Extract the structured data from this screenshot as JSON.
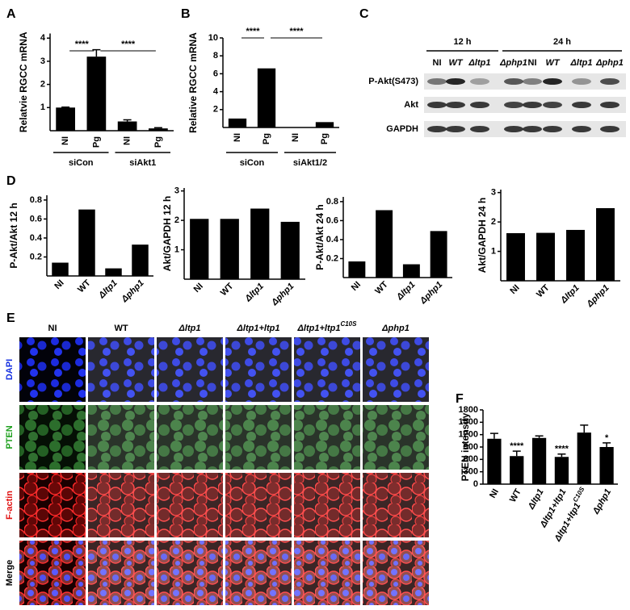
{
  "chart_data": [
    {
      "type": "bar",
      "panel": "A",
      "ylabel": "Relatvie RGCC mRNA",
      "categories": [
        "NI",
        "Pg",
        "NI",
        "Pg"
      ],
      "values": [
        1,
        3.2,
        0.4,
        0.1
      ],
      "errors": [
        0.02,
        0.3,
        0.07,
        0.03
      ],
      "groups": [
        "siCon",
        "siAkt1"
      ],
      "significance": [
        "****",
        "****"
      ],
      "color": "#000000",
      "ylim": [
        0,
        4.2
      ],
      "yticks": [
        1,
        2,
        3,
        4
      ]
    },
    {
      "type": "bar",
      "panel": "B",
      "ylabel": "Relative RGCC mRNA",
      "categories": [
        "NI",
        "Pg",
        "NI",
        "Pg"
      ],
      "values": [
        1,
        6.6,
        0,
        0.6
      ],
      "groups": [
        "siCon",
        "siAkt1/2"
      ],
      "significance": [
        "****",
        "****"
      ],
      "color": "#000000",
      "ylim": [
        0,
        10
      ],
      "yticks": [
        2,
        4,
        6,
        8,
        10
      ]
    },
    {
      "type": "bar",
      "panel": "D",
      "ylabel": "P-Akt/Akt  12 h",
      "categories": [
        "NI",
        "WT",
        "Δltp1",
        "Δphp1"
      ],
      "values": [
        0.14,
        0.7,
        0.08,
        0.33
      ],
      "color": "#000000",
      "ylim": [
        0,
        0.85
      ],
      "yticks": [
        0.2,
        0.4,
        0.6,
        0.8
      ]
    },
    {
      "type": "bar",
      "ylabel": "Akt/GAPDH  12 h",
      "categories": [
        "NI",
        "WT",
        "Δltp1",
        "Δphp1"
      ],
      "values": [
        2.05,
        2.05,
        2.4,
        1.95
      ],
      "color": "#000000",
      "ylim": [
        0,
        3.1
      ],
      "yticks": [
        1,
        2,
        3
      ]
    },
    {
      "type": "bar",
      "ylabel": "P-Akt/Akt  24 h",
      "categories": [
        "NI",
        "WT",
        "Δltp1",
        "Δphp1"
      ],
      "values": [
        0.17,
        0.71,
        0.14,
        0.49
      ],
      "color": "#000000",
      "ylim": [
        0,
        0.85
      ],
      "yticks": [
        0.2,
        0.4,
        0.6,
        0.8
      ]
    },
    {
      "type": "bar",
      "ylabel": "Akt/GAPDH  24 h",
      "categories": [
        "NI",
        "WT",
        "Δltp1",
        "Δphp1"
      ],
      "values": [
        1.62,
        1.63,
        1.73,
        2.47
      ],
      "color": "#000000",
      "ylim": [
        0,
        3.1
      ],
      "yticks": [
        1,
        2,
        3
      ]
    },
    {
      "type": "bar",
      "panel": "F",
      "ylabel": "PTEN intensity",
      "categories": [
        "NI",
        "WT",
        "Δltp1",
        "Δltp1+ltp1",
        "Δltp1+ltp1",
        "Δphp1"
      ],
      "category_superscripts": [
        null,
        null,
        null,
        null,
        "C10S",
        null
      ],
      "values": [
        1100,
        680,
        1120,
        660,
        1250,
        900
      ],
      "errors": [
        130,
        120,
        50,
        70,
        180,
        100
      ],
      "annotations": [
        null,
        "****",
        null,
        "****",
        null,
        "*"
      ],
      "color": "#000000",
      "ylim": [
        0,
        1800
      ],
      "yticks": [
        0,
        300,
        600,
        900,
        1200,
        1500,
        1800
      ]
    }
  ],
  "blot": {
    "panel": "C",
    "times": [
      "12 h",
      "24 h"
    ],
    "lanes": [
      "NI",
      "WT",
      "Δltp1",
      "Δphp1",
      "NI",
      "WT",
      "Δltp1",
      "Δphp1"
    ],
    "rows": [
      "P-Akt(S473)",
      "Akt",
      "GAPDH"
    ]
  },
  "microscopy": {
    "panel": "E",
    "columns": [
      "NI",
      "WT",
      "Δltp1",
      "Δltp1+ltp1",
      "Δltp1+ltp1",
      "Δphp1"
    ],
    "column_superscripts": [
      null,
      null,
      null,
      null,
      "C10S",
      null
    ],
    "rows": [
      "DAPI",
      "PTEN",
      "F-actin",
      "Merge"
    ]
  }
}
